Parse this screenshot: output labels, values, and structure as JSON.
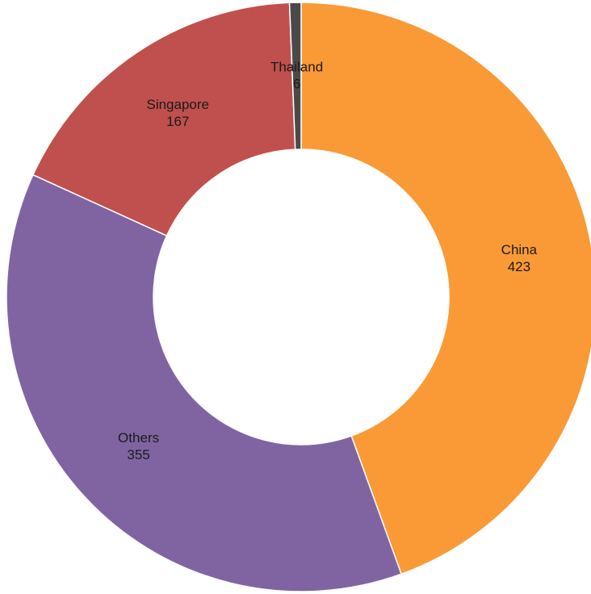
{
  "chart_data": {
    "type": "donut",
    "categories": [
      "China",
      "Others",
      "Singapore",
      "Thailand"
    ],
    "values": [
      423,
      355,
      167,
      6
    ],
    "colors": [
      "#f99a37",
      "#8064a2",
      "#c0504d",
      "#4a4a4a"
    ]
  }
}
